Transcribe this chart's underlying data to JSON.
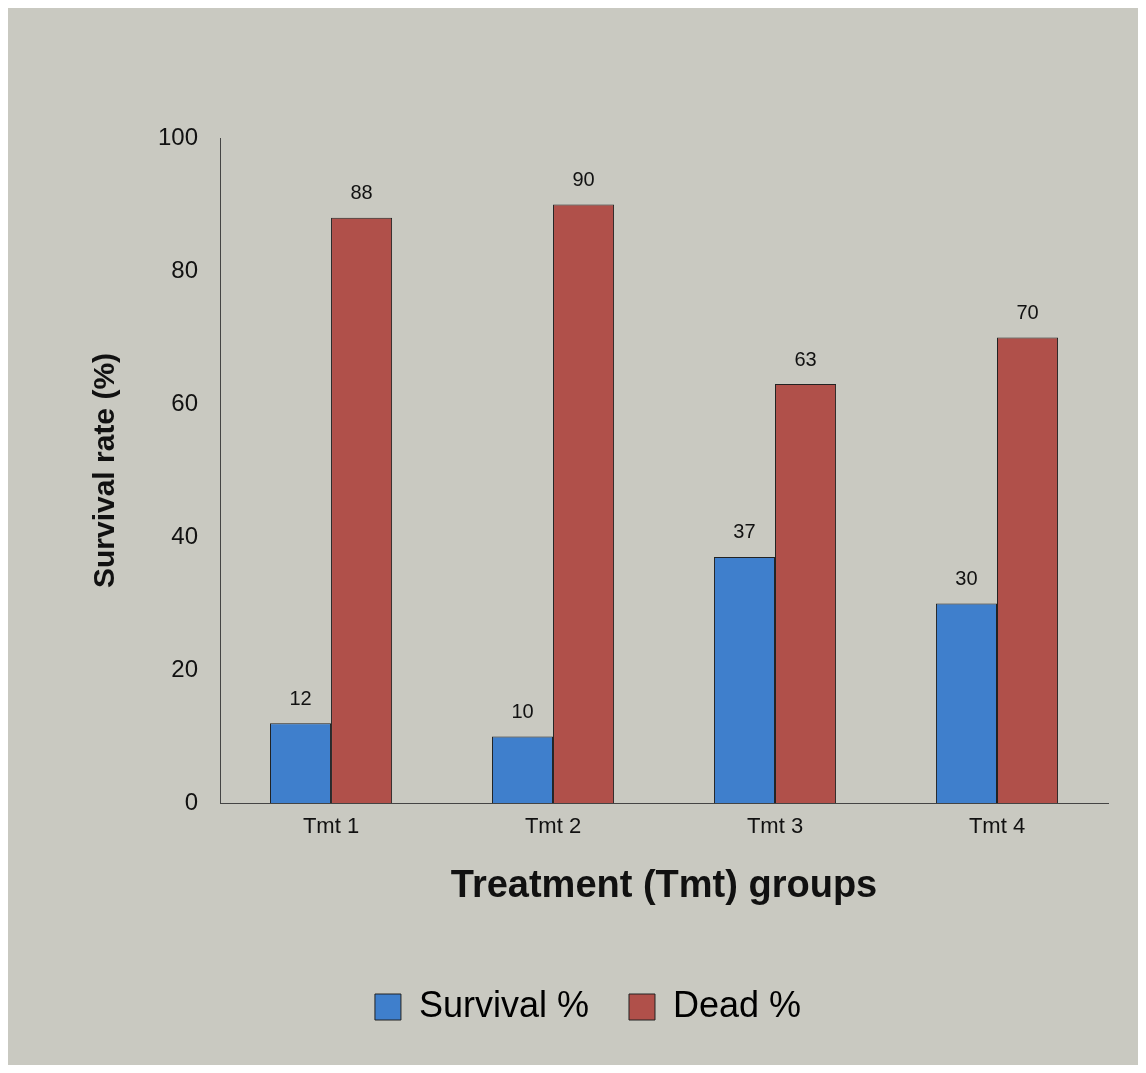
{
  "chart_data": {
    "type": "bar",
    "xlabel": "Treatment (Tmt) groups",
    "ylabel": "Survival rate (%)",
    "categories": [
      "Tmt 1",
      "Tmt 2",
      "Tmt 3",
      "Tmt 4"
    ],
    "series": [
      {
        "name": "Survival %",
        "color": "#3f7fcc",
        "values": [
          12,
          10,
          37,
          30
        ]
      },
      {
        "name": "Dead %",
        "color": "#b0504a",
        "values": [
          88,
          90,
          63,
          70
        ]
      }
    ],
    "ylim": [
      0,
      100
    ],
    "yticks": [
      0,
      20,
      40,
      60,
      80,
      100
    ],
    "grid": false,
    "legend": "bottom",
    "data_labels": true
  }
}
